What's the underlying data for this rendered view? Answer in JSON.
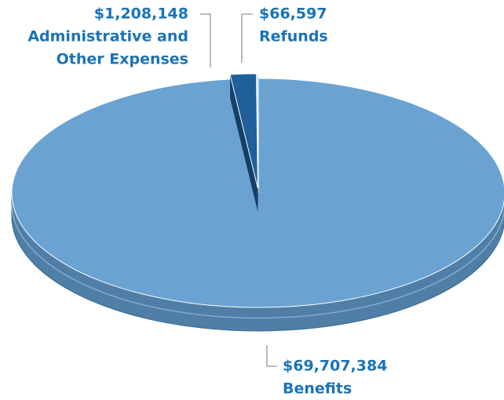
{
  "chart_data": {
    "type": "pie",
    "categories": [
      "Benefits",
      "Administrative and Other Expenses",
      "Refunds"
    ],
    "name_lines": [
      [
        "Benefits"
      ],
      [
        "Administrative and",
        "Other Expenses"
      ],
      [
        "Refunds"
      ]
    ],
    "values": [
      69707384,
      1208148,
      66597
    ],
    "value_labels": [
      "$69,707,384",
      "$1,208,148",
      "$66,597"
    ],
    "colors": [
      "#6aa3d2",
      "#1f5f9c",
      "#a9b8c8"
    ]
  }
}
